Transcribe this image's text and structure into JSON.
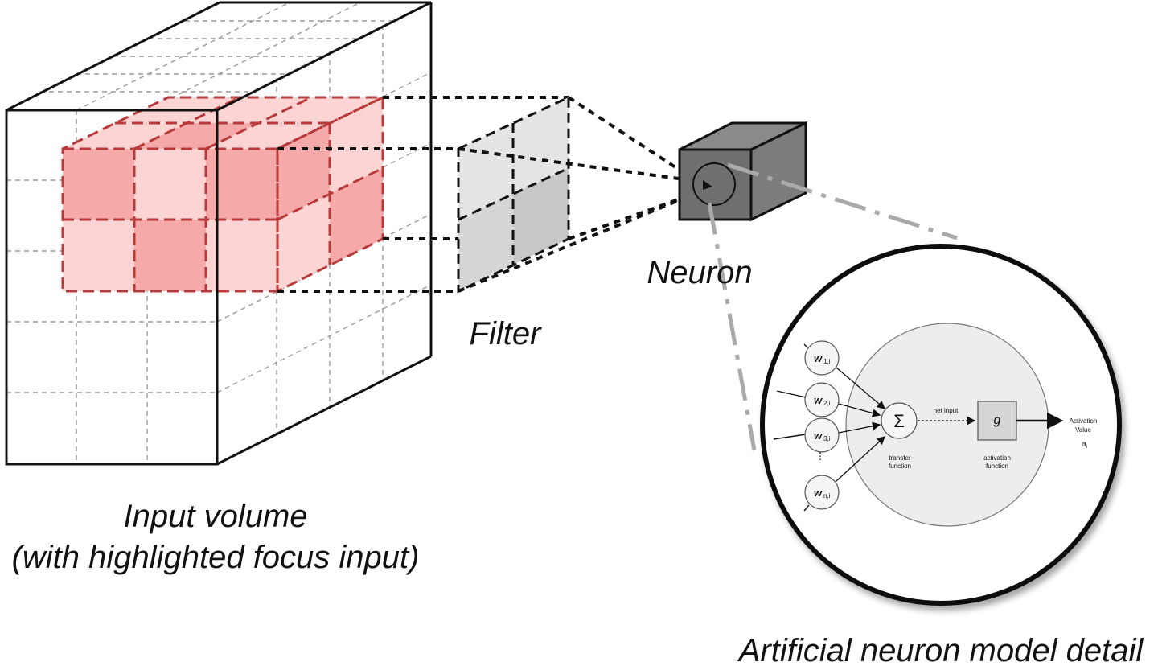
{
  "labels": {
    "input_volume_line1": "Input volume",
    "input_volume_line2": "(with highlighted focus input)",
    "filter": "Filter",
    "neuron": "Neuron",
    "detail": "Artificial neuron model detail"
  },
  "neuron_model": {
    "inputs": [
      {
        "w": "w",
        "sub": "1,i"
      },
      {
        "w": "w",
        "sub": "2,i"
      },
      {
        "w": "w",
        "sub": "3,i"
      },
      {
        "w": "w",
        "sub": "n,i"
      }
    ],
    "ellipsis": "·\n·\n·",
    "sum_symbol": "Σ",
    "transfer_label_1": "transfer",
    "transfer_label_2": "function",
    "net_input": "net input",
    "activation_symbol": "g",
    "activation_label_1": "activation",
    "activation_label_2": "function",
    "output_label_1": "Activation",
    "output_label_2": "Value",
    "output_symbol": "a",
    "output_sub": "i"
  },
  "colors": {
    "highlight_fill_dark": "#f6a9a9",
    "highlight_fill_light": "#fcd4d4",
    "highlight_stroke": "#b83a3a",
    "filter_light": "#e4e4e4",
    "filter_dark": "#c8c8c8",
    "neuron_front": "#6f6f6f",
    "neuron_top": "#8a8a8a",
    "neuron_side": "#7c7c7c",
    "inner_circle_fill": "#ededed"
  }
}
